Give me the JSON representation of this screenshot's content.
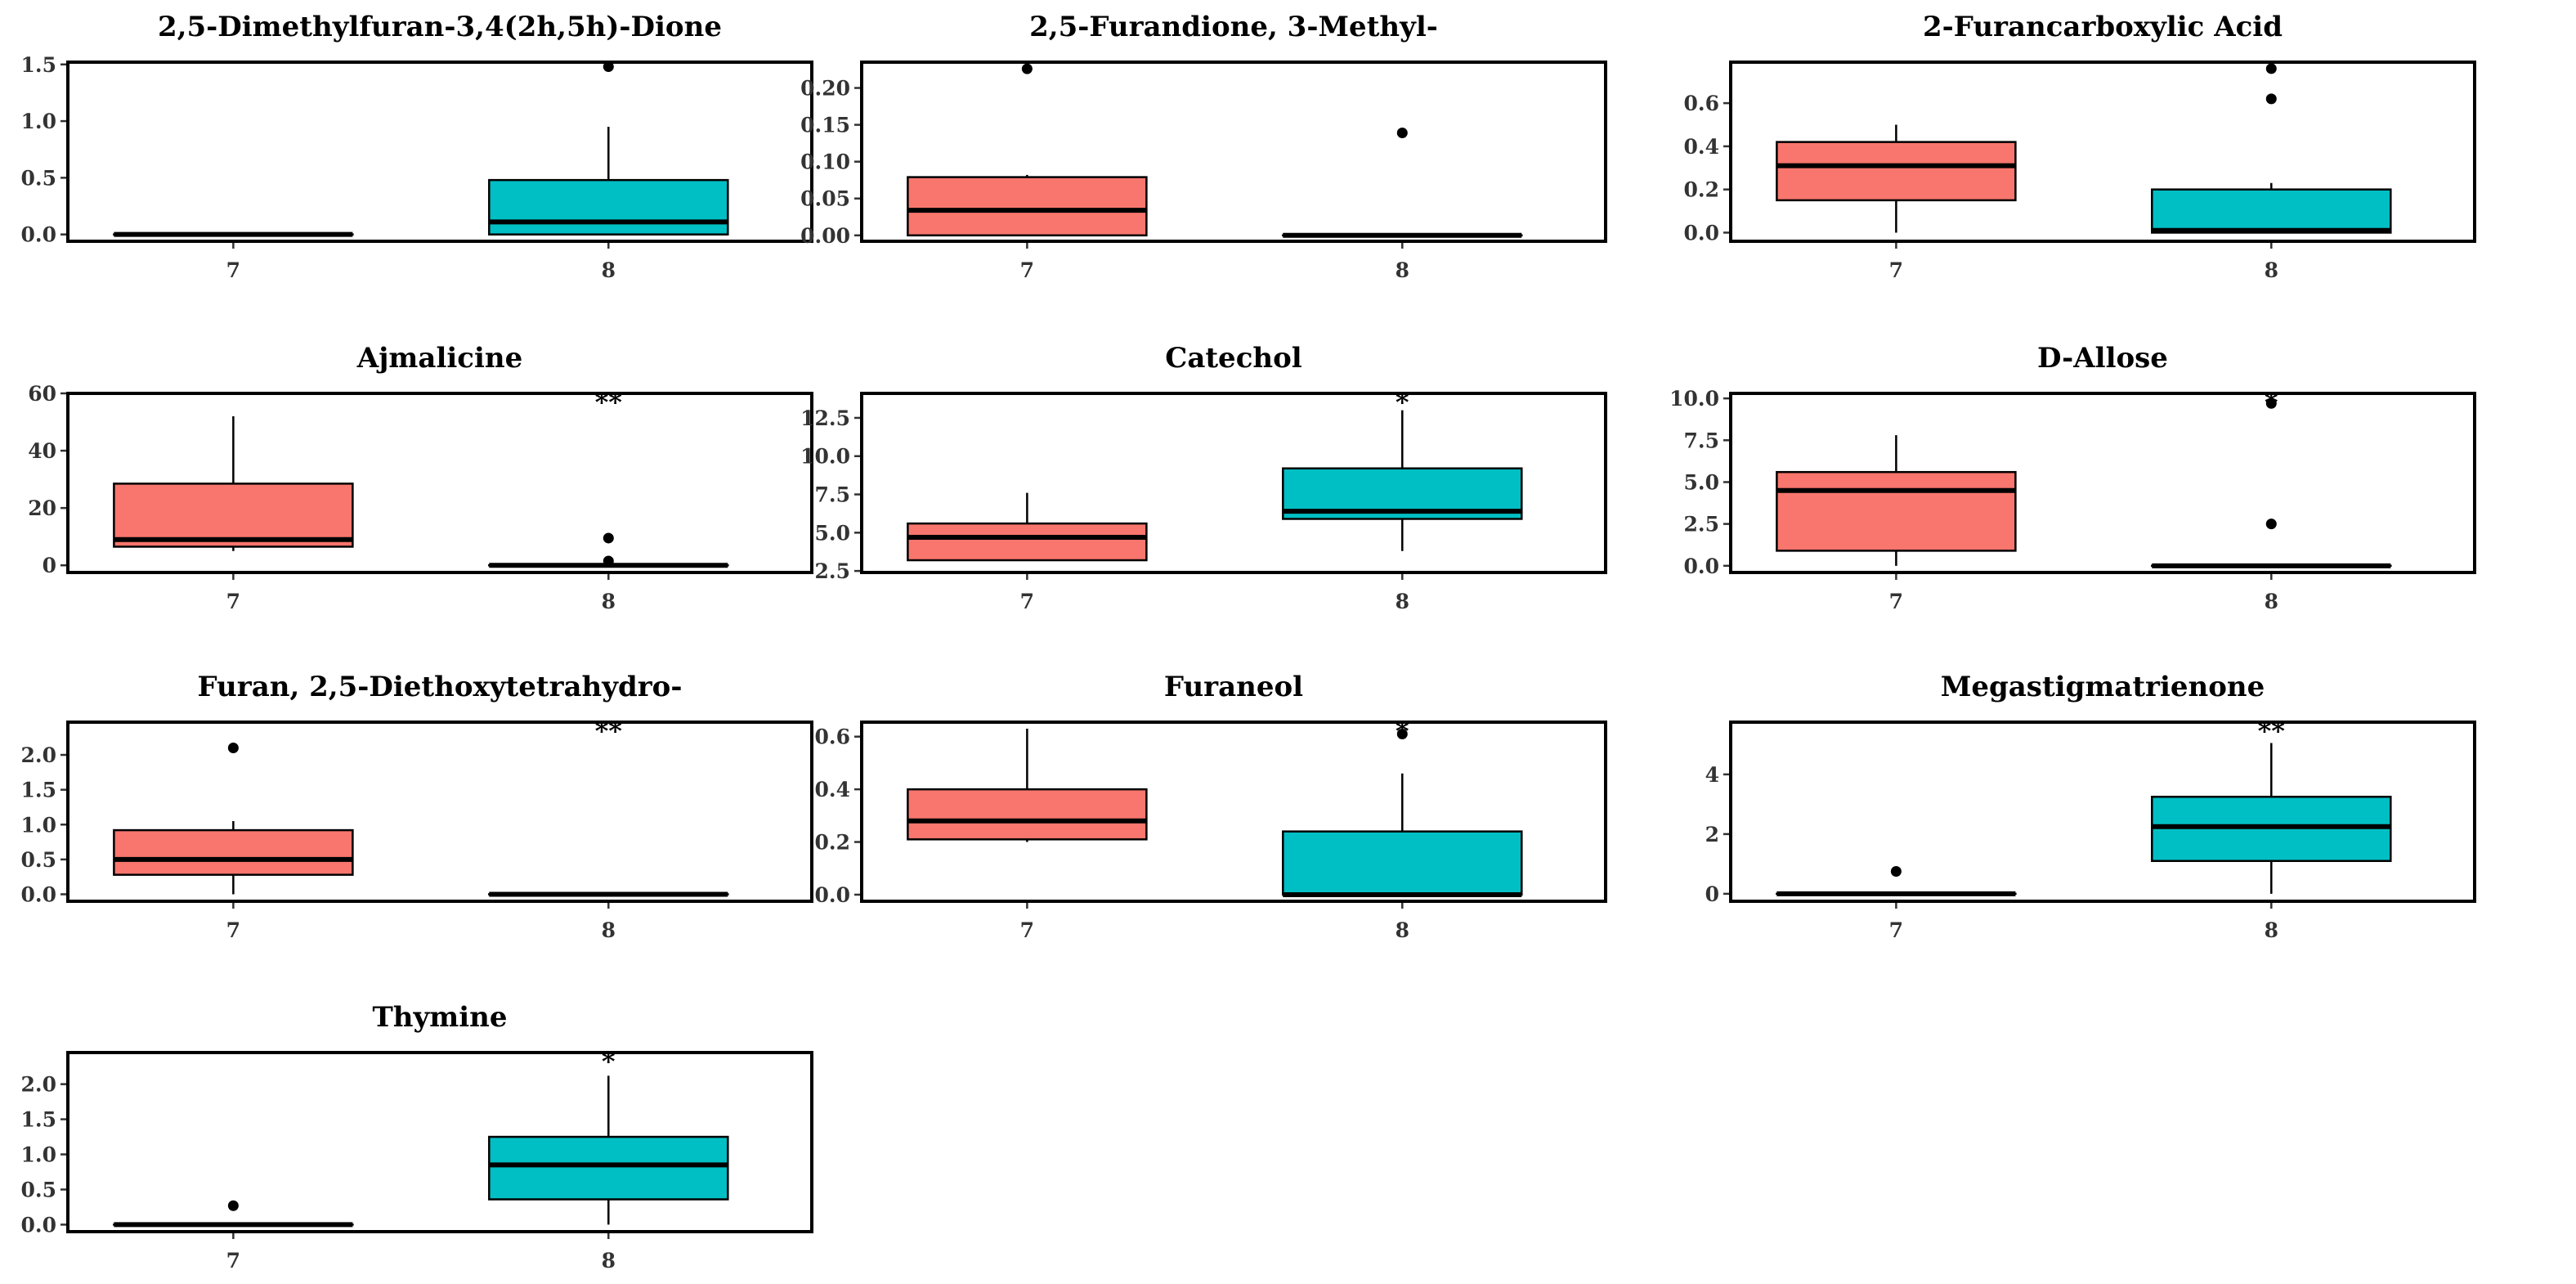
{
  "chart_data": {
    "type": "boxplot",
    "layout": "facet-grid-4x3",
    "groups": [
      "7",
      "8"
    ],
    "colors": {
      "7": "#F8766D",
      "8": "#00BFC4"
    },
    "panels": [
      {
        "title": "2,5-Dimethylfuran-3,4(2h,5h)-Dione",
        "ylim": [
          -0.06,
          1.52
        ],
        "yticks": [
          0.0,
          0.5,
          1.0,
          1.5
        ],
        "tick_labels": [
          "0.0",
          "0.5",
          "1.0",
          "1.5"
        ],
        "significance": "",
        "boxes": [
          {
            "group": "7",
            "q1": 0.0,
            "median": 0.0,
            "q3": 0.0,
            "whisker_low": 0.0,
            "whisker_high": 0.0,
            "outliers": []
          },
          {
            "group": "8",
            "q1": 0.0,
            "median": 0.11,
            "q3": 0.48,
            "whisker_low": 0.0,
            "whisker_high": 0.95,
            "outliers": [
              1.48
            ]
          }
        ]
      },
      {
        "title": "2,5-Furandione, 3-Methyl-",
        "ylim": [
          -0.008,
          0.235
        ],
        "yticks": [
          0.0,
          0.05,
          0.1,
          0.15,
          0.2
        ],
        "tick_labels": [
          "0.00",
          "0.05",
          "0.10",
          "0.15",
          "0.20"
        ],
        "significance": "",
        "boxes": [
          {
            "group": "7",
            "q1": 0.0,
            "median": 0.034,
            "q3": 0.079,
            "whisker_low": 0.0,
            "whisker_high": 0.082,
            "outliers": [
              0.226
            ]
          },
          {
            "group": "8",
            "q1": 0.0,
            "median": 0.0,
            "q3": 0.0,
            "whisker_low": 0.0,
            "whisker_high": 0.0,
            "outliers": [
              0.139
            ]
          }
        ]
      },
      {
        "title": "2-Furancarboxylic Acid",
        "ylim": [
          -0.04,
          0.79
        ],
        "yticks": [
          0.0,
          0.2,
          0.4,
          0.6
        ],
        "tick_labels": [
          "0.0",
          "0.2",
          "0.4",
          "0.6"
        ],
        "significance": "",
        "boxes": [
          {
            "group": "7",
            "q1": 0.15,
            "median": 0.31,
            "q3": 0.42,
            "whisker_low": 0.0,
            "whisker_high": 0.5,
            "outliers": []
          },
          {
            "group": "8",
            "q1": 0.0,
            "median": 0.01,
            "q3": 0.2,
            "whisker_low": 0.0,
            "whisker_high": 0.23,
            "outliers": [
              0.62,
              0.76
            ]
          }
        ]
      },
      {
        "title": "Ajmalicine",
        "ylim": [
          -2.5,
          60
        ],
        "yticks": [
          0,
          20,
          40,
          60
        ],
        "tick_labels": [
          "0",
          "20",
          "40",
          "60"
        ],
        "significance": "**",
        "boxes": [
          {
            "group": "7",
            "q1": 6.5,
            "median": 9.0,
            "q3": 28.5,
            "whisker_low": 5.0,
            "whisker_high": 52.0,
            "outliers": []
          },
          {
            "group": "8",
            "q1": 0.0,
            "median": 0.0,
            "q3": 0.0,
            "whisker_low": 0.0,
            "whisker_high": 0.0,
            "outliers": [
              9.5,
              1.5
            ]
          }
        ]
      },
      {
        "title": "Catechol",
        "ylim": [
          2.4,
          14.1
        ],
        "yticks": [
          2.5,
          5.0,
          7.5,
          10.0,
          12.5
        ],
        "tick_labels": [
          "2.5",
          "5.0",
          "7.5",
          "10.0",
          "12.5"
        ],
        "significance": "*",
        "boxes": [
          {
            "group": "7",
            "q1": 3.2,
            "median": 4.7,
            "q3": 5.6,
            "whisker_low": 3.2,
            "whisker_high": 7.6,
            "outliers": []
          },
          {
            "group": "8",
            "q1": 5.9,
            "median": 6.4,
            "q3": 9.2,
            "whisker_low": 3.8,
            "whisker_high": 13.0,
            "outliers": []
          }
        ]
      },
      {
        "title": "D-Allose",
        "ylim": [
          -0.4,
          10.3
        ],
        "yticks": [
          0.0,
          2.5,
          5.0,
          7.5,
          10.0
        ],
        "tick_labels": [
          "0.0",
          "2.5",
          "5.0",
          "7.5",
          "10.0"
        ],
        "significance": "*",
        "boxes": [
          {
            "group": "7",
            "q1": 0.9,
            "median": 4.5,
            "q3": 5.6,
            "whisker_low": 0.0,
            "whisker_high": 7.8,
            "outliers": []
          },
          {
            "group": "8",
            "q1": 0.0,
            "median": 0.0,
            "q3": 0.0,
            "whisker_low": 0.0,
            "whisker_high": 0.0,
            "outliers": [
              2.5,
              9.7
            ]
          }
        ]
      },
      {
        "title": "Furan, 2,5-Diethoxytetrahydro-",
        "ylim": [
          -0.1,
          2.47
        ],
        "yticks": [
          0.0,
          0.5,
          1.0,
          1.5,
          2.0
        ],
        "tick_labels": [
          "0.0",
          "0.5",
          "1.0",
          "1.5",
          "2.0"
        ],
        "significance": "**",
        "boxes": [
          {
            "group": "7",
            "q1": 0.28,
            "median": 0.5,
            "q3": 0.92,
            "whisker_low": 0.0,
            "whisker_high": 1.05,
            "outliers": [
              2.1
            ]
          },
          {
            "group": "8",
            "q1": 0.0,
            "median": 0.0,
            "q3": 0.0,
            "whisker_low": 0.0,
            "whisker_high": 0.0,
            "outliers": []
          }
        ]
      },
      {
        "title": "Furaneol",
        "ylim": [
          -0.025,
          0.655
        ],
        "yticks": [
          0.0,
          0.2,
          0.4,
          0.6
        ],
        "tick_labels": [
          "0.0",
          "0.2",
          "0.4",
          "0.6"
        ],
        "significance": "*",
        "boxes": [
          {
            "group": "7",
            "q1": 0.21,
            "median": 0.28,
            "q3": 0.4,
            "whisker_low": 0.2,
            "whisker_high": 0.63,
            "outliers": []
          },
          {
            "group": "8",
            "q1": 0.0,
            "median": 0.0,
            "q3": 0.24,
            "whisker_low": 0.0,
            "whisker_high": 0.46,
            "outliers": [
              0.61
            ]
          }
        ]
      },
      {
        "title": "Megastigmatrienone",
        "ylim": [
          -0.25,
          5.75
        ],
        "yticks": [
          0,
          2,
          4
        ],
        "tick_labels": [
          "0",
          "2",
          "4"
        ],
        "significance": "**",
        "boxes": [
          {
            "group": "7",
            "q1": 0.0,
            "median": 0.0,
            "q3": 0.0,
            "whisker_low": 0.0,
            "whisker_high": 0.0,
            "outliers": [
              0.75
            ]
          },
          {
            "group": "8",
            "q1": 1.1,
            "median": 2.25,
            "q3": 3.25,
            "whisker_low": 0.0,
            "whisker_high": 5.05,
            "outliers": []
          }
        ]
      },
      {
        "title": "Thymine",
        "ylim": [
          -0.1,
          2.45
        ],
        "yticks": [
          0.0,
          0.5,
          1.0,
          1.5,
          2.0
        ],
        "tick_labels": [
          "0.0",
          "0.5",
          "1.0",
          "1.5",
          "2.0"
        ],
        "significance": "*",
        "boxes": [
          {
            "group": "7",
            "q1": 0.0,
            "median": 0.0,
            "q3": 0.0,
            "whisker_low": 0.0,
            "whisker_high": 0.0,
            "outliers": [
              0.27
            ]
          },
          {
            "group": "8",
            "q1": 0.36,
            "median": 0.85,
            "q3": 1.25,
            "whisker_low": 0.0,
            "whisker_high": 2.12,
            "outliers": []
          }
        ]
      }
    ]
  }
}
